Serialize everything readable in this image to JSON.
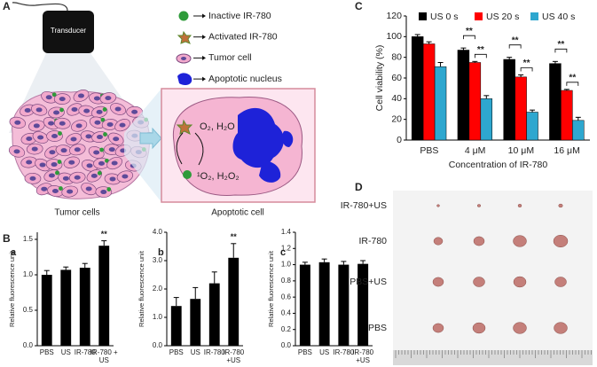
{
  "panel_a": {
    "label": "A",
    "transducer": "Transducer",
    "legend": [
      "Inactive IR-780",
      "Activated IR-780",
      "Tumor cell",
      "Apoptotic nucleus"
    ],
    "tumor_cells": "Tumor cells",
    "apoptotic_cell": "Apoptotic cell",
    "reaction_top": "O₂, H₂O",
    "reaction_bottom": "¹O₂, H₂O₂"
  },
  "panel_b": {
    "label": "B"
  },
  "chart_data": [
    {
      "type": "bar",
      "panel": "C",
      "ylabel": "Cell viability (%)",
      "xlabel": "Concentration of IR-780",
      "categories": [
        "PBS",
        "4 μM",
        "10 μM",
        "16 μM"
      ],
      "series": [
        {
          "name": "US 0 s",
          "color": "#000000",
          "values": [
            100,
            87,
            78,
            74
          ],
          "errors": [
            2,
            2,
            2,
            2
          ]
        },
        {
          "name": "US 20 s",
          "color": "#ff0000",
          "values": [
            93,
            75,
            61,
            48
          ],
          "errors": [
            2,
            1,
            2,
            1
          ]
        },
        {
          "name": "US 40 s",
          "color": "#2ea7cf",
          "values": [
            71,
            40,
            27,
            19
          ],
          "errors": [
            4,
            3,
            2,
            3
          ]
        }
      ],
      "ylim": [
        0,
        120
      ],
      "yticks": [
        0,
        20,
        40,
        60,
        80,
        100,
        120
      ],
      "annotations": [
        "**",
        "**",
        "**",
        "**",
        "**",
        "**"
      ]
    },
    {
      "type": "bar",
      "panel": "a",
      "ylabel": "Relative fluorescence unit",
      "categories": [
        "PBS",
        "US",
        "IR-780",
        "IR-780 + US"
      ],
      "color": "#000000",
      "values": [
        1.0,
        1.07,
        1.1,
        1.41
      ],
      "errors": [
        0.06,
        0.04,
        0.06,
        0.07
      ],
      "ylim": [
        0,
        1.6
      ],
      "yticks": [
        {
          "value": 0,
          "label": "0.0"
        },
        0.5,
        {
          "value": 1,
          "label": "1.0"
        },
        1.5
      ],
      "annotations": [
        "**"
      ]
    },
    {
      "type": "bar",
      "panel": "b",
      "ylabel": "Relative fluorescence unit",
      "categories": [
        "PBS",
        "US",
        "IR-780",
        "IR-780 +US"
      ],
      "color": "#000000",
      "values": [
        1.4,
        1.65,
        2.2,
        3.1
      ],
      "errors": [
        0.3,
        0.4,
        0.4,
        0.5
      ],
      "ylim": [
        0,
        4
      ],
      "yticks": [
        {
          "value": 0,
          "label": "0.0"
        },
        {
          "value": 1,
          "label": "1.0"
        },
        {
          "value": 2,
          "label": "2.0"
        },
        {
          "value": 3,
          "label": "3.0"
        },
        {
          "value": 4,
          "label": "4.0"
        }
      ],
      "annotations": [
        "**"
      ]
    },
    {
      "type": "bar",
      "panel": "c",
      "ylabel": "Relative fluorescence unit",
      "categories": [
        "PBS",
        "US",
        "IR-780",
        "IR-780 +US"
      ],
      "color": "#000000",
      "values": [
        1.0,
        1.03,
        1.0,
        1.01
      ],
      "errors": [
        0.03,
        0.04,
        0.04,
        0.04
      ],
      "ylim": [
        0,
        1.4
      ],
      "yticks": [
        {
          "value": 0,
          "label": "0.0"
        },
        0.2,
        0.4,
        0.6,
        0.8,
        {
          "value": 1,
          "label": "1.0"
        },
        1.2,
        1.4
      ]
    }
  ],
  "panel_d": {
    "label": "D",
    "rows": [
      "IR-780+US",
      "IR-780",
      "PBS+US",
      "PBS"
    ]
  }
}
